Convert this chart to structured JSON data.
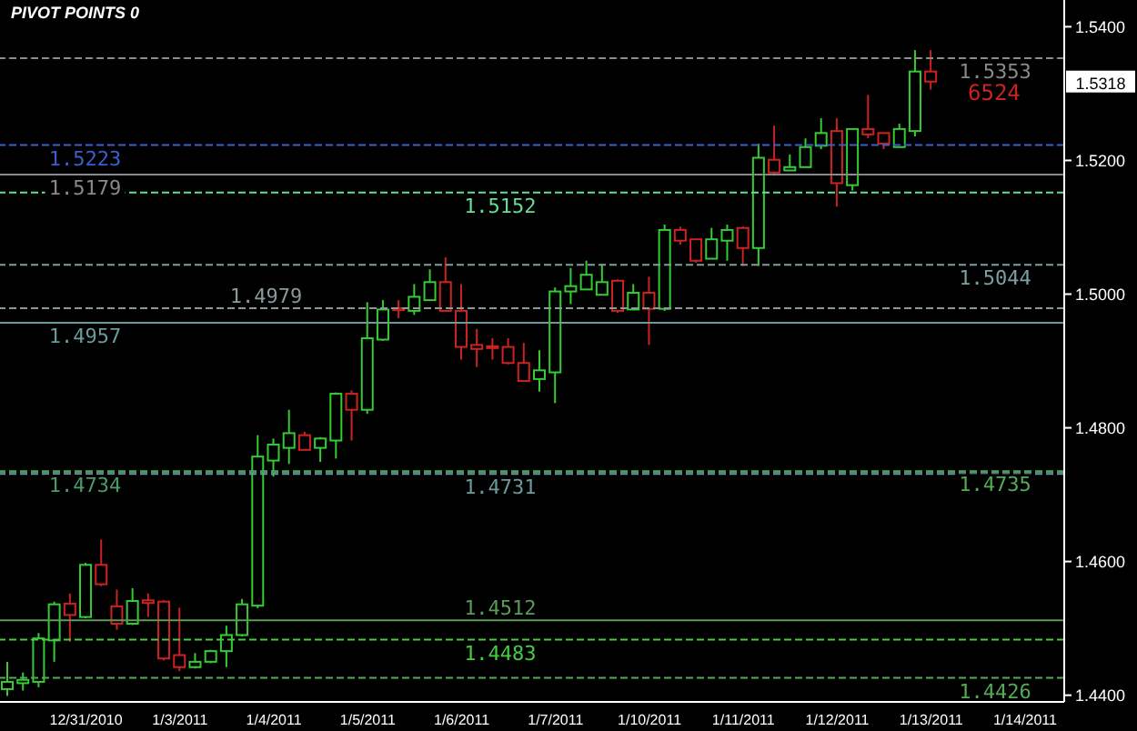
{
  "chart_data": {
    "type": "candlestick",
    "title": "PIVOT POINTS 0",
    "categories": [
      null,
      null,
      null,
      null,
      null,
      "12/31/2010",
      null,
      null,
      null,
      null,
      null,
      "1/3/2011",
      null,
      null,
      null,
      null,
      null,
      "1/4/2011",
      null,
      null,
      null,
      null,
      null,
      "1/5/2011",
      null,
      null,
      null,
      null,
      null,
      "1/6/2011",
      null,
      null,
      null,
      null,
      null,
      "1/7/2011",
      null,
      null,
      null,
      null,
      null,
      "1/10/2011",
      null,
      null,
      null,
      null,
      null,
      "1/11/2011",
      null,
      null,
      null,
      null,
      null,
      "1/12/2011",
      null,
      null,
      null,
      null,
      null,
      "1/13/2011",
      null,
      null,
      null,
      null,
      null,
      "1/14/2011",
      null,
      null
    ],
    "ohlc": [
      [
        1.4409,
        1.445,
        1.4399,
        1.442
      ],
      [
        1.4418,
        1.4434,
        1.4407,
        1.4423
      ],
      [
        1.442,
        1.4493,
        1.4412,
        1.4485
      ],
      [
        1.4482,
        1.454,
        1.445,
        1.4536
      ],
      [
        1.4537,
        1.4552,
        1.448,
        1.452
      ],
      [
        1.4517,
        1.4598,
        1.4515,
        1.4595
      ],
      [
        1.4595,
        1.4633,
        1.4563,
        1.4566
      ],
      [
        1.4533,
        1.4558,
        1.4498,
        1.4507
      ],
      [
        1.4507,
        1.456,
        1.4505,
        1.4541
      ],
      [
        1.4542,
        1.4552,
        1.4517,
        1.4538
      ],
      [
        1.454,
        1.4542,
        1.4452,
        1.4455
      ],
      [
        1.446,
        1.4531,
        1.4436,
        1.4442
      ],
      [
        1.4442,
        1.4463,
        1.444,
        1.445
      ],
      [
        1.445,
        1.4468,
        1.4448,
        1.4466
      ],
      [
        1.4466,
        1.4504,
        1.4442,
        1.449
      ],
      [
        1.449,
        1.4544,
        1.4488,
        1.4536
      ],
      [
        1.4534,
        1.4789,
        1.453,
        1.4757
      ],
      [
        1.4751,
        1.4784,
        1.4727,
        1.4775
      ],
      [
        1.477,
        1.4827,
        1.4746,
        1.4792
      ],
      [
        1.4789,
        1.4794,
        1.4767,
        1.4767
      ],
      [
        1.477,
        1.4786,
        1.4749,
        1.4784
      ],
      [
        1.4781,
        1.4853,
        1.4754,
        1.4851
      ],
      [
        1.4851,
        1.4856,
        1.4781,
        1.4827
      ],
      [
        1.4827,
        1.4988,
        1.4821,
        1.4934
      ],
      [
        1.4932,
        1.4991,
        1.493,
        1.4977
      ],
      [
        1.4979,
        1.4991,
        1.4964,
        1.4976
      ],
      [
        1.4975,
        1.5015,
        1.4969,
        1.4996
      ],
      [
        1.4991,
        1.5037,
        1.4991,
        1.5018
      ],
      [
        1.5018,
        1.5055,
        1.4975,
        1.4975
      ],
      [
        1.4975,
        1.5015,
        1.4902,
        1.4921
      ],
      [
        1.4924,
        1.4948,
        1.4891,
        1.4918
      ],
      [
        1.4922,
        1.4934,
        1.4902,
        1.492
      ],
      [
        1.4921,
        1.4934,
        1.4895,
        1.4897
      ],
      [
        1.4897,
        1.4927,
        1.487,
        1.487
      ],
      [
        1.4873,
        1.4916,
        1.4854,
        1.4886
      ],
      [
        1.4883,
        1.501,
        1.4837,
        1.5004
      ],
      [
        1.5004,
        1.5039,
        1.4985,
        1.5012
      ],
      [
        1.5007,
        1.505,
        1.5007,
        1.5029
      ],
      [
        1.4999,
        1.5045,
        1.4999,
        1.5018
      ],
      [
        1.502,
        1.5022,
        1.4972,
        1.4975
      ],
      [
        1.4977,
        1.5015,
        1.4977,
        1.5002
      ],
      [
        1.5002,
        1.5026,
        1.4924,
        1.4978
      ],
      [
        1.4978,
        1.5104,
        1.4975,
        1.5096
      ],
      [
        1.5096,
        1.5101,
        1.5074,
        1.508
      ],
      [
        1.5082,
        1.5082,
        1.5047,
        1.505
      ],
      [
        1.5053,
        1.5099,
        1.5053,
        1.5082
      ],
      [
        1.508,
        1.5104,
        1.505,
        1.5096
      ],
      [
        1.5099,
        1.5101,
        1.5042,
        1.5069
      ],
      [
        1.5069,
        1.5225,
        1.5042,
        1.5204
      ],
      [
        1.5201,
        1.5252,
        1.5177,
        1.5182
      ],
      [
        1.5185,
        1.5209,
        1.5185,
        1.519
      ],
      [
        1.519,
        1.5233,
        1.519,
        1.522
      ],
      [
        1.5222,
        1.5263,
        1.5217,
        1.5241
      ],
      [
        1.5244,
        1.5263,
        1.5131,
        1.5166
      ],
      [
        1.5163,
        1.5247,
        1.5155,
        1.5247
      ],
      [
        1.5247,
        1.5298,
        1.5233,
        1.5239
      ],
      [
        1.5241,
        1.5241,
        1.5217,
        1.5225
      ],
      [
        1.522,
        1.5255,
        1.522,
        1.5247
      ],
      [
        1.5244,
        1.5365,
        1.5236,
        1.5333
      ],
      [
        1.5333,
        1.5365,
        1.5306,
        1.5318
      ],
      null,
      null,
      null,
      null,
      null,
      null,
      null,
      null
    ],
    "colors": [
      "#33cc33",
      "#33cc33",
      "#33cc33",
      "#33cc33",
      "#cc2222",
      "#33cc33",
      "#cc2222",
      "#cc2222",
      "#33cc33",
      "#cc2222",
      "#cc2222",
      "#cc2222",
      "#33cc33",
      "#33cc33",
      "#33cc33",
      "#33cc33",
      "#33cc33",
      "#33cc33",
      "#33cc33",
      "#cc2222",
      "#33cc33",
      "#33cc33",
      "#cc2222",
      "#33cc33",
      "#33cc33",
      "#cc2222",
      "#33cc33",
      "#33cc33",
      "#cc2222",
      "#cc2222",
      "#cc2222",
      "#cc2222",
      "#cc2222",
      "#cc2222",
      "#33cc33",
      "#33cc33",
      "#33cc33",
      "#33cc33",
      "#33cc33",
      "#cc2222",
      "#33cc33",
      "#cc2222",
      "#33cc33",
      "#cc2222",
      "#cc2222",
      "#33cc33",
      "#33cc33",
      "#cc2222",
      "#33cc33",
      "#cc2222",
      "#33cc33",
      "#33cc33",
      "#33cc33",
      "#cc2222",
      "#33cc33",
      "#cc2222",
      "#cc2222",
      "#33cc33",
      "#33cc33",
      "#cc2222",
      null,
      null,
      null,
      null,
      null,
      null,
      null,
      null
    ],
    "ylim": [
      1.439,
      1.544
    ],
    "yticks": [
      {
        "value": 1.44,
        "label": "1.4400"
      },
      {
        "value": 1.46,
        "label": "1.4600"
      },
      {
        "value": 1.48,
        "label": "1.4800"
      },
      {
        "value": 1.5,
        "label": "1.5000"
      },
      {
        "value": 1.52,
        "label": "1.5200"
      },
      {
        "value": 1.54,
        "label": "1.5400"
      }
    ],
    "ref_lines": [
      {
        "axis": "y",
        "value": 1.5223,
        "label": "1.5223",
        "color": "#3a5fd0",
        "line_style": "dashed"
      },
      {
        "axis": "y",
        "value": 1.5152,
        "label": "1.5152",
        "color": "#66dd99",
        "line_style": "dashed"
      },
      {
        "axis": "y",
        "value": 1.5353,
        "label": "1.5353",
        "color": "#8a8a8a",
        "line_style": "dashed"
      },
      {
        "axis": "y",
        "value": 1.5179,
        "label": "1.5179",
        "color": "#8a8a8a",
        "line_style": "solid"
      },
      {
        "axis": "y",
        "value": 1.4979,
        "label": "1.4979",
        "color": "#8a9a9a",
        "line_style": "dashed"
      },
      {
        "axis": "y",
        "value": 1.5044,
        "label": "1.5044",
        "color": "#7aa0a0",
        "line_style": "dashed"
      },
      {
        "axis": "y",
        "value": 1.4957,
        "label": "1.4957",
        "color": "#6a9a9a",
        "line_style": "solid"
      },
      {
        "axis": "y",
        "value": 1.4731,
        "label": "1.4731",
        "color": "#6a9a9a",
        "line_style": "dashed"
      },
      {
        "axis": "y",
        "value": 1.4735,
        "label": "1.4735",
        "color": "#55aa55",
        "line_style": "dashed"
      },
      {
        "axis": "y",
        "value": 1.4734,
        "label": "1.4734",
        "color": "#4a9a6a",
        "line_style": "dashed"
      },
      {
        "axis": "y",
        "value": 1.4483,
        "label": "1.4483",
        "color": "#44cc44",
        "line_style": "dashed"
      },
      {
        "axis": "y",
        "value": 1.4426,
        "label": "1.4426",
        "color": "#55aa55",
        "line_style": "dashed"
      },
      {
        "axis": "y",
        "value": 1.4512,
        "label": "1.4512",
        "color": "#5a9a5a",
        "line_style": "solid"
      }
    ],
    "annotations": [
      {
        "text": "1.5318",
        "y": 1.5318
      },
      "6524"
    ]
  }
}
